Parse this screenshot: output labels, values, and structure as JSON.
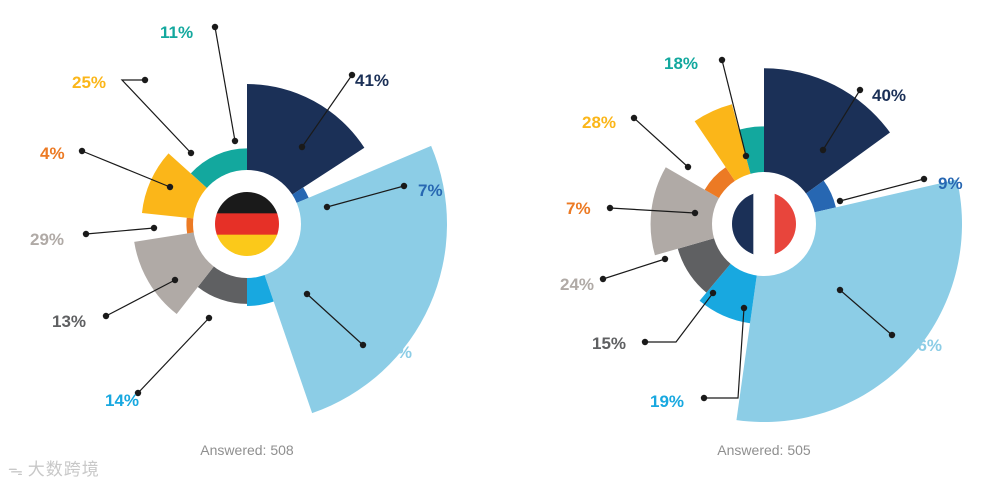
{
  "chart_data": [
    {
      "type": "polar-area",
      "flag": "germany",
      "answered": "Answered: 508",
      "segments": [
        {
          "label": "41%",
          "value": 41,
          "color": "#1b3057"
        },
        {
          "label": "7%",
          "value": 7,
          "color": "#2767b2"
        },
        {
          "label": "69%",
          "value": 69,
          "color": "#8ccde6"
        },
        {
          "label": "14%",
          "value": 14,
          "color": "#18a8e0"
        },
        {
          "label": "13%",
          "value": 13,
          "color": "#5f6062"
        },
        {
          "label": "29%",
          "value": 29,
          "color": "#b0aaa6"
        },
        {
          "label": "4%",
          "value": 4,
          "color": "#ec7a24"
        },
        {
          "label": "25%",
          "value": 25,
          "color": "#fbb619"
        },
        {
          "label": "11%",
          "value": 11,
          "color": "#13a89e"
        }
      ]
    },
    {
      "type": "polar-area",
      "flag": "france",
      "answered": "Answered: 505",
      "segments": [
        {
          "label": "40%",
          "value": 40,
          "color": "#1b3057"
        },
        {
          "label": "9%",
          "value": 9,
          "color": "#2767b2"
        },
        {
          "label": "56%",
          "value": 56,
          "color": "#8ccde6"
        },
        {
          "label": "19%",
          "value": 19,
          "color": "#18a8e0"
        },
        {
          "label": "15%",
          "value": 15,
          "color": "#5f6062"
        },
        {
          "label": "24%",
          "value": 24,
          "color": "#b0aaa6"
        },
        {
          "label": "7%",
          "value": 7,
          "color": "#ec7a24"
        },
        {
          "label": "28%",
          "value": 28,
          "color": "#fbb619"
        },
        {
          "label": "18%",
          "value": 18,
          "color": "#13a89e"
        }
      ]
    }
  ],
  "flag_colors": {
    "germany": [
      "#1a1a1a",
      "#e63027",
      "#fbc91a"
    ],
    "france": [
      "#1b3057",
      "#ffffff",
      "#e8453c"
    ]
  },
  "watermark": {
    "text": "大数跨境",
    "icon": "weibo-icon"
  }
}
